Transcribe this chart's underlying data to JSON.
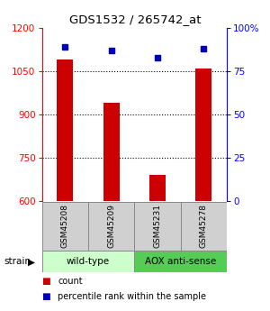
{
  "title": "GDS1532 / 265742_at",
  "samples": [
    "GSM45208",
    "GSM45209",
    "GSM45231",
    "GSM45278"
  ],
  "counts": [
    1090,
    940,
    690,
    1060
  ],
  "percentiles": [
    89,
    87,
    83,
    88
  ],
  "ylim_left": [
    600,
    1200
  ],
  "ylim_right": [
    0,
    100
  ],
  "yticks_left": [
    600,
    750,
    900,
    1050,
    1200
  ],
  "yticks_right": [
    0,
    25,
    50,
    75,
    100
  ],
  "yticklabels_right": [
    "0",
    "25",
    "50",
    "75",
    "100%"
  ],
  "bar_color": "#cc0000",
  "dot_color": "#0000bb",
  "groups": [
    {
      "label": "wild-type",
      "indices": [
        0,
        1
      ],
      "color": "#ccffcc"
    },
    {
      "label": "AOX anti-sense",
      "indices": [
        2,
        3
      ],
      "color": "#55cc55"
    }
  ],
  "strain_label": "strain",
  "legend_items": [
    {
      "color": "#cc0000",
      "label": "count"
    },
    {
      "color": "#0000bb",
      "label": "percentile rank within the sample"
    }
  ],
  "bar_width": 0.35
}
